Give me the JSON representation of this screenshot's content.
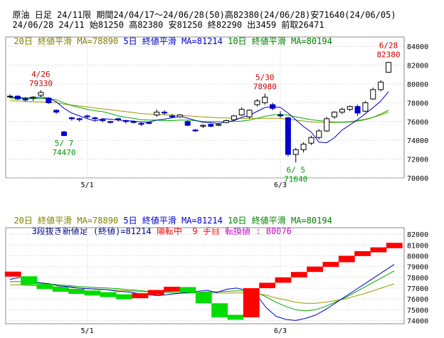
{
  "header": {
    "line1": {
      "name": "原油",
      "period_type": "日足",
      "contract": "24/11限",
      "range": "期間24/04/17～24/06/28(50)",
      "high": "高82380(24/06/28)",
      "low": "安71640(24/06/05)"
    },
    "line2": {
      "date": "24/06/28",
      "contract": "24/11",
      "open": "始81250",
      "high": "高82380",
      "low": "安81250",
      "close": "終82290",
      "volume": "出3459",
      "prev": "前取26471"
    }
  },
  "ma_legend": {
    "ma20": "20日 終値平滑 MA=78890",
    "ma5": "5日 終値平滑 MA=81214",
    "ma10": "10日 終値平滑 MA=80194"
  },
  "lower_info": {
    "kagi": "3段抜き新値足 (終値)=81214",
    "state": "陽転中",
    "count": "9 手目",
    "turn": "転換値 : 80076"
  },
  "colors": {
    "up": "#ff0000",
    "down": "#0000cc",
    "ma5": "#0000cc",
    "ma10": "#00aa00",
    "ma20": "#999900",
    "bull_brick": "#ff0000",
    "bear_brick": "#00dd00",
    "grid": "#cccccc"
  },
  "chart_data": [
    {
      "type": "candlestick",
      "y_ticks": [
        "84000",
        "82000",
        "80000",
        "78000",
        "76000",
        "74000",
        "72000",
        "70000"
      ],
      "ylim": [
        70000,
        85000
      ],
      "x_labels": [
        {
          "index": 10,
          "label": "5/1"
        },
        {
          "index": 35,
          "label": "6/3"
        }
      ],
      "annotations": [
        {
          "index": 4,
          "date": "4/26",
          "value": "79330",
          "kind": "high"
        },
        {
          "index": 7,
          "date": "5/ 7",
          "value": "74470",
          "kind": "low"
        },
        {
          "index": 33,
          "date": "5/30",
          "value": "78980",
          "kind": "high"
        },
        {
          "index": 37,
          "date": "6/ 5",
          "value": "71640",
          "kind": "low"
        },
        {
          "index": 49,
          "date": "6/28",
          "value": "82380",
          "kind": "high"
        }
      ],
      "candles": [
        [
          78700,
          78900,
          78500,
          78700
        ],
        [
          78700,
          78800,
          78300,
          78400
        ],
        [
          78400,
          78600,
          78100,
          78300
        ],
        [
          78500,
          78700,
          78200,
          78600
        ],
        [
          78800,
          79330,
          78600,
          79100
        ],
        [
          78500,
          78600,
          77900,
          78000
        ],
        [
          77200,
          77300,
          76800,
          77000
        ],
        [
          74900,
          75000,
          74470,
          74500
        ],
        [
          76400,
          76500,
          76100,
          76300
        ],
        [
          76300,
          76400,
          76000,
          76200
        ],
        [
          76600,
          76700,
          76300,
          76500
        ],
        [
          76400,
          76500,
          76100,
          76300
        ],
        [
          76200,
          76300,
          75900,
          76100
        ],
        [
          76000,
          76100,
          75800,
          75900
        ],
        [
          76300,
          76400,
          76000,
          76200
        ],
        [
          76100,
          76200,
          75800,
          76000
        ],
        [
          76000,
          76100,
          75800,
          75900
        ],
        [
          75800,
          75900,
          75500,
          75700
        ],
        [
          75900,
          76000,
          75700,
          75800
        ],
        [
          76700,
          77300,
          76500,
          77000
        ],
        [
          77000,
          77200,
          76700,
          76900
        ],
        [
          76600,
          76800,
          76400,
          76500
        ],
        [
          76500,
          76800,
          76400,
          76700
        ],
        [
          76000,
          76100,
          75500,
          75600
        ],
        [
          75100,
          75200,
          74900,
          75000
        ],
        [
          75500,
          75700,
          75300,
          75600
        ],
        [
          75700,
          75800,
          75400,
          75500
        ],
        [
          75600,
          75800,
          75500,
          75700
        ],
        [
          75900,
          76200,
          75800,
          76100
        ],
        [
          76200,
          76700,
          76100,
          76600
        ],
        [
          76700,
          77500,
          76600,
          77300
        ],
        [
          76500,
          77300,
          76300,
          77200
        ],
        [
          77800,
          78400,
          77600,
          78200
        ],
        [
          78000,
          78980,
          77800,
          78600
        ],
        [
          77800,
          78000,
          77200,
          77400
        ],
        [
          76700,
          77100,
          76400,
          76600
        ],
        [
          76400,
          76500,
          72300,
          72500
        ],
        [
          72500,
          73200,
          71640,
          73000
        ],
        [
          73000,
          73800,
          72700,
          73600
        ],
        [
          73700,
          74500,
          73500,
          74300
        ],
        [
          74300,
          75200,
          74100,
          75000
        ],
        [
          75000,
          76500,
          74900,
          76300
        ],
        [
          76500,
          77100,
          76300,
          77000
        ],
        [
          77000,
          77500,
          76800,
          77300
        ],
        [
          77300,
          77700,
          77100,
          77600
        ],
        [
          77600,
          77800,
          76600,
          76900
        ],
        [
          77100,
          78200,
          77000,
          78000
        ],
        [
          78400,
          79600,
          78300,
          79400
        ],
        [
          79400,
          80400,
          79200,
          80200
        ],
        [
          81250,
          82380,
          81250,
          82290
        ]
      ],
      "ma5": [
        78600,
        78550,
        78500,
        78500,
        78620,
        78480,
        78100,
        77400,
        76900,
        76600,
        76300,
        76050,
        76300,
        76250,
        76150,
        76100,
        76050,
        75950,
        75950,
        76150,
        76250,
        76400,
        76560,
        76360,
        76120,
        75920,
        75880,
        75800,
        75950,
        76100,
        76440,
        76660,
        77080,
        77500,
        77580,
        77500,
        76900,
        76180,
        75460,
        74880,
        73800,
        73740,
        74280,
        75100,
        75640,
        76200,
        76840,
        77480,
        78180,
        79180
      ],
      "ma10": [
        78500,
        78480,
        78450,
        78430,
        78450,
        78450,
        78320,
        77980,
        77700,
        77500,
        77300,
        77150,
        77050,
        76850,
        76600,
        76450,
        76350,
        76200,
        76150,
        76150,
        76100,
        76100,
        76150,
        76150,
        76100,
        76000,
        76000,
        75990,
        76000,
        75990,
        76050,
        76150,
        76350,
        76550,
        76700,
        76780,
        76680,
        76500,
        76350,
        76200,
        76100,
        76000,
        75950,
        75930,
        75950,
        76050,
        76200,
        76450,
        76800,
        77200
      ],
      "ma20": [
        78200,
        78200,
        78150,
        78100,
        78100,
        78050,
        78000,
        77850,
        77750,
        77650,
        77550,
        77450,
        77350,
        77250,
        77150,
        77050,
        76950,
        76850,
        76800,
        76750,
        76720,
        76700,
        76650,
        76600,
        76550,
        76500,
        76450,
        76400,
        76380,
        76350,
        76340,
        76330,
        76330,
        76350,
        76350,
        76330,
        76250,
        76150,
        76050,
        75950,
        75900,
        75880,
        75900,
        75950,
        76000,
        76100,
        76250,
        76450,
        76700,
        77000
      ]
    },
    {
      "type": "new-price-bricks",
      "y_ticks": [
        "82000",
        "81000",
        "80000",
        "79000",
        "78000",
        "77000",
        "76000",
        "75000",
        "74000"
      ],
      "ylim": [
        73700,
        82600
      ],
      "x_labels": [
        {
          "index": 10,
          "label": "5/1"
        },
        {
          "index": 35,
          "label": "6/3"
        }
      ],
      "bricks": [
        {
          "from": 78100,
          "to": 78500,
          "dir": "up"
        },
        {
          "from": 78100,
          "to": 77300,
          "dir": "down"
        },
        {
          "from": 77300,
          "to": 77000,
          "dir": "down"
        },
        {
          "from": 77000,
          "to": 76800,
          "dir": "down"
        },
        {
          "from": 76800,
          "to": 76600,
          "dir": "down"
        },
        {
          "from": 76600,
          "to": 76500,
          "dir": "down"
        },
        {
          "from": 76500,
          "to": 76300,
          "dir": "down"
        },
        {
          "from": 76300,
          "to": 76100,
          "dir": "down"
        },
        {
          "from": 76100,
          "to": 76500,
          "dir": "up"
        },
        {
          "from": 76500,
          "to": 76700,
          "dir": "up"
        },
        {
          "from": 76700,
          "to": 77100,
          "dir": "up"
        },
        {
          "from": 77100,
          "to": 76600,
          "dir": "down"
        },
        {
          "from": 76600,
          "to": 75600,
          "dir": "down"
        },
        {
          "from": 75600,
          "to": 74300,
          "dir": "down"
        },
        {
          "from": 74300,
          "to": 74300,
          "dir": "down"
        },
        {
          "from": 74300,
          "to": 77000,
          "dir": "up"
        },
        {
          "from": 77000,
          "to": 77500,
          "dir": "up"
        },
        {
          "from": 77500,
          "to": 78000,
          "dir": "up"
        },
        {
          "from": 78000,
          "to": 78500,
          "dir": "up"
        },
        {
          "from": 78500,
          "to": 79000,
          "dir": "up"
        },
        {
          "from": 79000,
          "to": 79400,
          "dir": "up"
        },
        {
          "from": 79400,
          "to": 80000,
          "dir": "up"
        },
        {
          "from": 80000,
          "to": 80400,
          "dir": "up"
        },
        {
          "from": 80400,
          "to": 80700,
          "dir": "up"
        },
        {
          "from": 80700,
          "to": 81200,
          "dir": "up"
        }
      ],
      "ma5": [
        77800,
        78000,
        77800,
        77500,
        77400,
        77200,
        77150,
        77000,
        76950,
        76900,
        76850,
        76700,
        76650,
        76500,
        76400,
        76300,
        76400,
        76500,
        76600,
        76700,
        76800,
        76600,
        76900,
        77000,
        76800,
        76400,
        75200,
        74400,
        74100,
        74000,
        74200,
        74500,
        75000,
        75600,
        76200,
        76800,
        77400,
        78000,
        78600,
        79200
      ],
      "ma10": [
        77600,
        77600,
        77500,
        77450,
        77400,
        77300,
        77250,
        77150,
        77100,
        77050,
        77000,
        76950,
        76850,
        76800,
        76700,
        76650,
        76600,
        76550,
        76550,
        76600,
        76650,
        76650,
        76700,
        76750,
        76750,
        76600,
        76200,
        75700,
        75300,
        75000,
        74900,
        75000,
        75300,
        75700,
        76100,
        76600,
        77100,
        77600,
        78100,
        78600
      ],
      "ma20": [
        77300,
        77300,
        77250,
        77200,
        77150,
        77100,
        77050,
        77000,
        76950,
        76900,
        76850,
        76800,
        76750,
        76700,
        76650,
        76600,
        76580,
        76560,
        76550,
        76550,
        76550,
        76540,
        76540,
        76550,
        76550,
        76500,
        76350,
        76100,
        75900,
        75700,
        75600,
        75600,
        75700,
        75850,
        76000,
        76250,
        76500,
        76800,
        77100,
        77400
      ]
    }
  ]
}
